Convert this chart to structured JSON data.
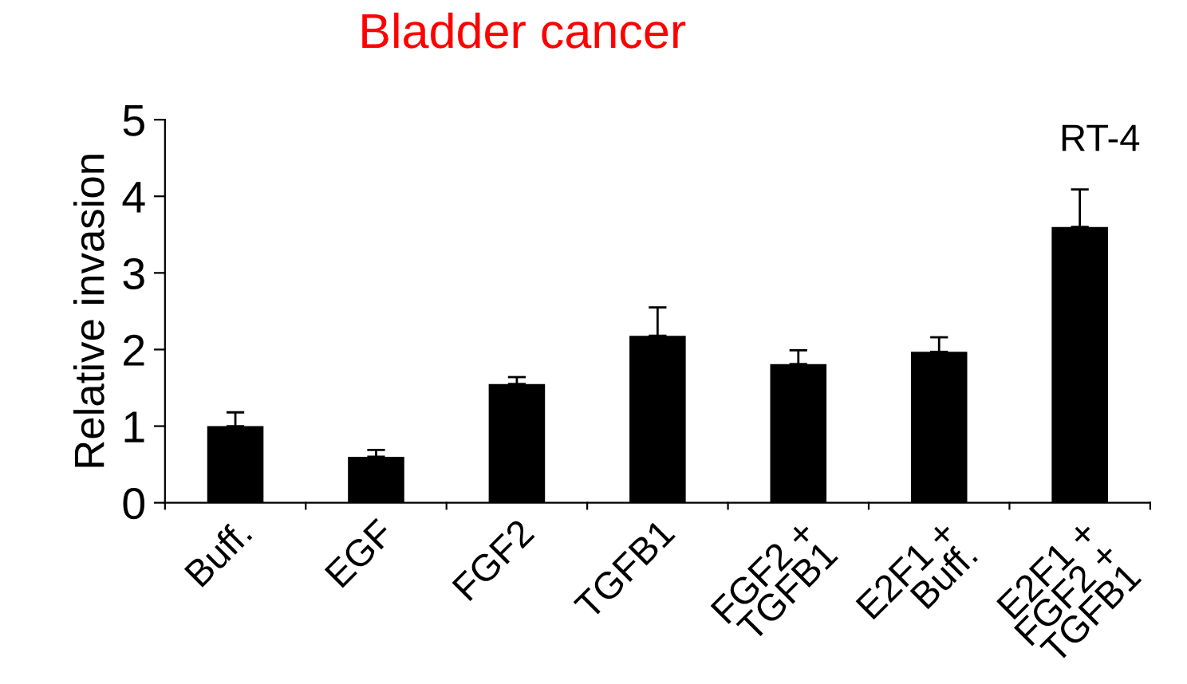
{
  "chart_data": {
    "type": "bar",
    "title": "Bladder cancer",
    "ylabel": "Relative invasion",
    "categories": [
      "Buff.",
      "EGF",
      "FGF2",
      "TGFB1",
      "FGF2 +\nTGFB1",
      "E2F1 +\nBuff.",
      "E2F1 +\nFGF2 +\nTGFB1"
    ],
    "values": [
      1.0,
      0.6,
      1.55,
      2.18,
      1.81,
      1.97,
      3.6
    ],
    "errors": [
      [
        1.0,
        1.18
      ],
      [
        0.6,
        0.69
      ],
      [
        1.55,
        1.64
      ],
      [
        2.18,
        2.55
      ],
      [
        1.81,
        1.99
      ],
      [
        1.97,
        2.16
      ],
      [
        3.6,
        4.09
      ]
    ],
    "color": "#000000",
    "ylim": [
      0,
      5
    ],
    "yticks": [
      0,
      1,
      2,
      3,
      4,
      5
    ],
    "grid": false,
    "legend": false,
    "annotations": [
      "RT-4"
    ]
  }
}
